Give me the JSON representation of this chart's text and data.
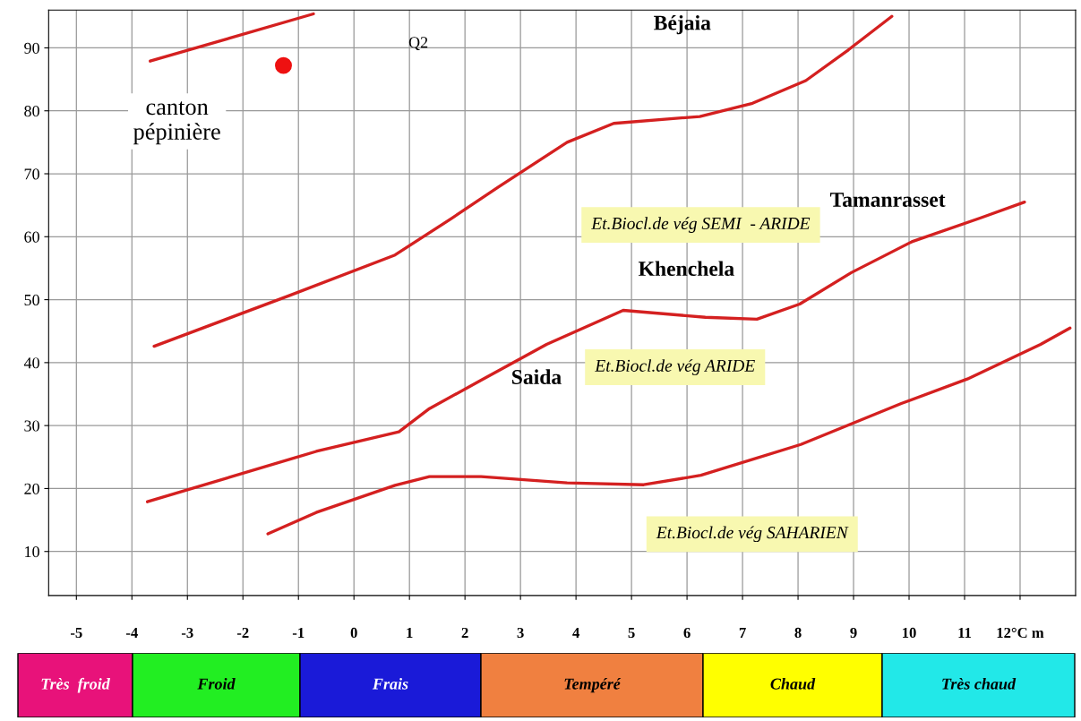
{
  "chart_data": [
    {
      "type": "line",
      "ylabel": "Q2",
      "xlim": [
        -5.5,
        13
      ],
      "ylim": [
        3,
        96
      ],
      "xticks": [
        -5,
        -4,
        -3,
        -2,
        -1,
        0,
        1,
        2,
        3,
        4,
        5,
        6,
        7,
        8,
        9,
        10,
        11,
        {
          "value": 12,
          "label": "12°C m"
        }
      ],
      "yticks": [
        10,
        20,
        30,
        40,
        50,
        60,
        70,
        80,
        90
      ],
      "grid": true,
      "legend": false,
      "marker": "none",
      "line_style": "solid",
      "series": [
        {
          "color": "#d42020",
          "x": [
            -3.67,
            -0.73
          ],
          "values": [
            87.9,
            95.4
          ]
        },
        {
          "color": "#d42020",
          "x": [
            -3.6,
            -1.18,
            0.74,
            1.74,
            2.6,
            3.84,
            4.68,
            6.23,
            7.18,
            8.14,
            8.91,
            9.69
          ],
          "values": [
            42.6,
            50.6,
            57.1,
            62.8,
            67.9,
            75.0,
            78.0,
            79.1,
            81.2,
            84.8,
            89.7,
            95.0
          ]
        },
        {
          "color": "#d42020",
          "x": [
            -3.72,
            -0.68,
            0.81,
            1.36,
            2.29,
            3.47,
            4.85,
            6.33,
            7.26,
            8.03,
            8.96,
            10.05,
            11.29,
            12.08
          ],
          "values": [
            17.9,
            25.9,
            29.0,
            32.7,
            37.2,
            42.9,
            48.3,
            47.2,
            46.9,
            49.3,
            54.3,
            59.2,
            63.0,
            65.5
          ]
        },
        {
          "color": "#d42020",
          "x": [
            -1.55,
            -0.68,
            0.74,
            1.36,
            2.29,
            3.84,
            5.22,
            6.25,
            8.05,
            9.86,
            11.05,
            12.37,
            12.9
          ],
          "values": [
            12.8,
            16.2,
            20.5,
            21.9,
            21.9,
            20.9,
            20.6,
            22.1,
            27.0,
            33.5,
            37.4,
            42.9,
            45.5
          ]
        },
        {
          "type": "scatter",
          "marker": "circle",
          "color": "#ee1111",
          "x": [
            -1.27
          ],
          "values": [
            87.2
          ]
        }
      ],
      "annotations": [
        "Béjaia",
        "Tamanrasset",
        "Khenchela",
        "Saida",
        "Et.Biocl.de vég SEMI  - ARIDE",
        "Et.Biocl.de vég ARIDE",
        "Et.Biocl.de vég SAHARIEN",
        "canton\npépinière"
      ]
    },
    {
      "type": "other",
      "categories": [
        "Très  froid",
        "Froid",
        "Frais",
        "Tempéré",
        "Chaud",
        "Très chaud"
      ],
      "colors": [
        "#e8127a",
        "#22ee22",
        "#1a1ad8",
        "#f08040",
        "#ffff00",
        "#22e8e8"
      ]
    }
  ]
}
